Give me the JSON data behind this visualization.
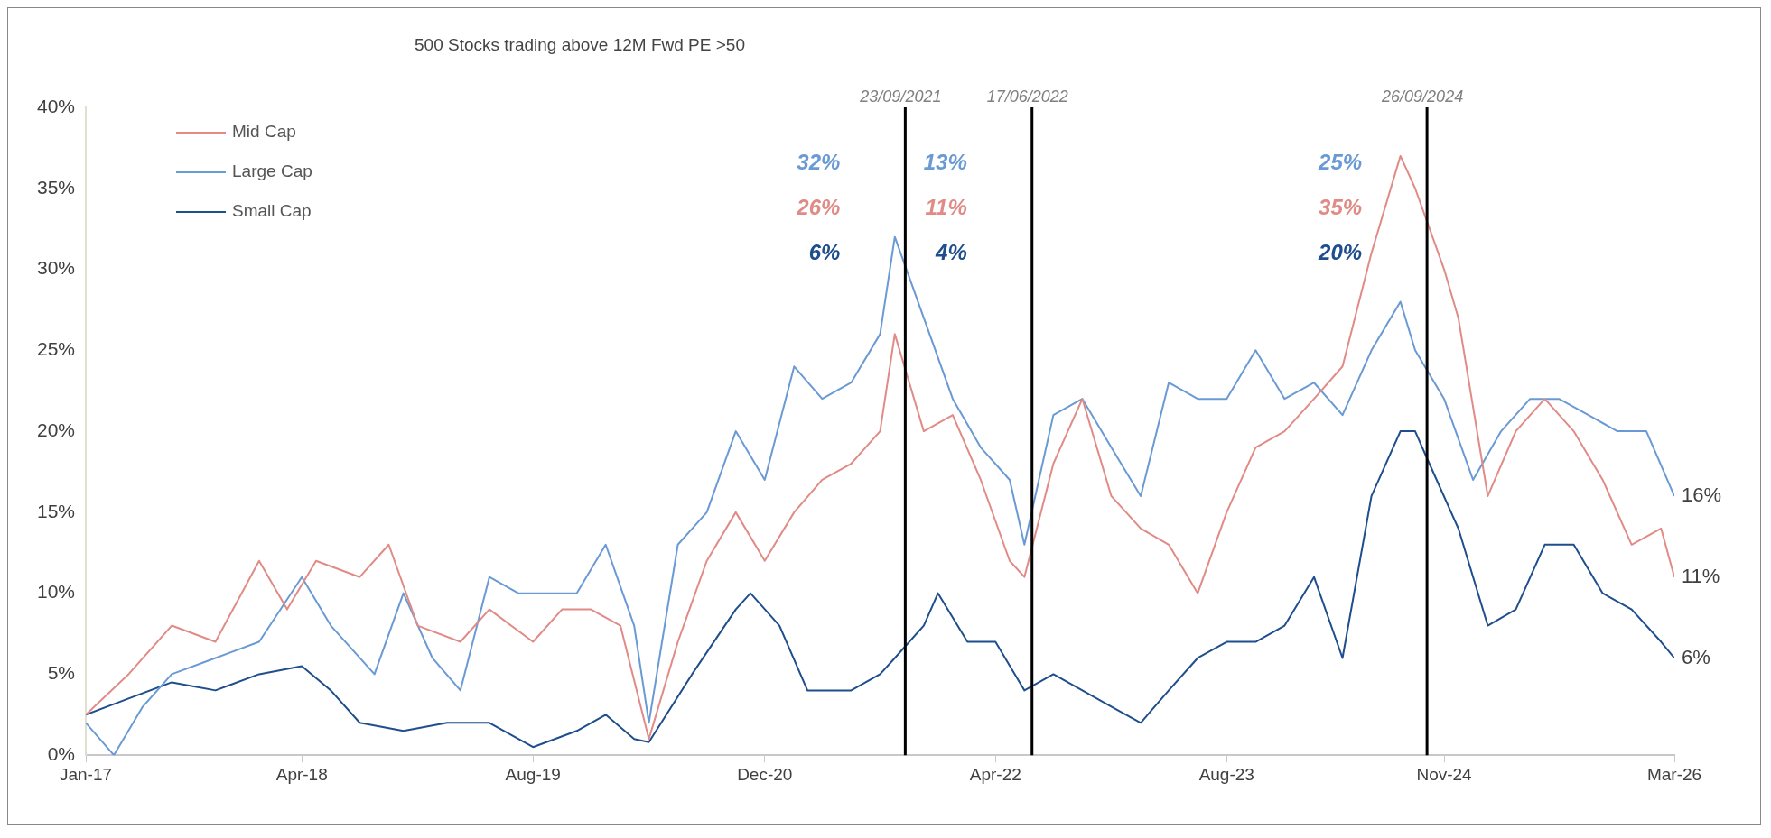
{
  "chart_data": {
    "type": "line",
    "title": "500 Stocks trading above 12M Fwd PE >50",
    "legend": "top left",
    "grid": false,
    "xlim": [
      "2017-01",
      "2026-03"
    ],
    "xticks": [
      {
        "value": "2017-01",
        "label": "Jan-17"
      },
      {
        "value": "2018-04",
        "label": "Apr-18"
      },
      {
        "value": "2019-08",
        "label": "Aug-19"
      },
      {
        "value": "2020-12",
        "label": "Dec-20"
      },
      {
        "value": "2022-04",
        "label": "Apr-22"
      },
      {
        "value": "2023-08",
        "label": "Aug-23"
      },
      {
        "value": "2024-11",
        "label": "Nov-24"
      },
      {
        "value": "2026-03",
        "label": "Mar-26"
      }
    ],
    "ylim": [
      0,
      40
    ],
    "yticks": [
      {
        "value": 0,
        "label": "0%"
      },
      {
        "value": 5,
        "label": "5%"
      },
      {
        "value": 10,
        "label": "10%"
      },
      {
        "value": 15,
        "label": "15%"
      },
      {
        "value": 20,
        "label": "20%"
      },
      {
        "value": 25,
        "label": "25%"
      },
      {
        "value": 30,
        "label": "30%"
      },
      {
        "value": 35,
        "label": "35%"
      },
      {
        "value": 40,
        "label": "40%"
      }
    ],
    "series": [
      {
        "name": "Mid Cap",
        "color": "#e08b86",
        "x": [
          "2017-01",
          "2017-04",
          "2017-07",
          "2017-10",
          "2018-01",
          "2018-03",
          "2018-05",
          "2018-08",
          "2018-10",
          "2018-12",
          "2019-03",
          "2019-05",
          "2019-08",
          "2019-10",
          "2019-12",
          "2020-02",
          "2020-04",
          "2020-06",
          "2020-08",
          "2020-10",
          "2020-12",
          "2021-02",
          "2021-04",
          "2021-06",
          "2021-08",
          "2021-09",
          "2021-11",
          "2022-01",
          "2022-03",
          "2022-05",
          "2022-06",
          "2022-08",
          "2022-10",
          "2022-12",
          "2023-02",
          "2023-04",
          "2023-06",
          "2023-08",
          "2023-10",
          "2023-12",
          "2024-02",
          "2024-04",
          "2024-06",
          "2024-08",
          "2024-09",
          "2024-11",
          "2024-12",
          "2025-02",
          "2025-04",
          "2025-06",
          "2025-08",
          "2025-10",
          "2025-12",
          "2026-02",
          "2026-03"
        ],
        "values": [
          2.5,
          5,
          8,
          7,
          12,
          9,
          12,
          11,
          13,
          8,
          7,
          9,
          7,
          9,
          9,
          8,
          1,
          7,
          12,
          15,
          12,
          15,
          17,
          18,
          20,
          26,
          20,
          21,
          17,
          12,
          11,
          18,
          22,
          16,
          14,
          13,
          10,
          15,
          19,
          20,
          22,
          24,
          31,
          37,
          35,
          30,
          27,
          16,
          20,
          22,
          20,
          17,
          13,
          14,
          11
        ]
      },
      {
        "name": "Large Cap",
        "color": "#6a9ad4",
        "x": [
          "2017-01",
          "2017-03",
          "2017-05",
          "2017-07",
          "2017-10",
          "2018-01",
          "2018-04",
          "2018-06",
          "2018-09",
          "2018-11",
          "2019-01",
          "2019-03",
          "2019-05",
          "2019-07",
          "2019-09",
          "2019-11",
          "2020-01",
          "2020-03",
          "2020-04",
          "2020-06",
          "2020-08",
          "2020-10",
          "2020-12",
          "2021-02",
          "2021-04",
          "2021-06",
          "2021-08",
          "2021-09",
          "2021-11",
          "2022-01",
          "2022-03",
          "2022-05",
          "2022-06",
          "2022-08",
          "2022-10",
          "2022-12",
          "2023-02",
          "2023-04",
          "2023-06",
          "2023-08",
          "2023-10",
          "2023-12",
          "2024-02",
          "2024-04",
          "2024-06",
          "2024-08",
          "2024-09",
          "2024-11",
          "2025-01",
          "2025-03",
          "2025-05",
          "2025-07",
          "2025-09",
          "2025-11",
          "2026-01",
          "2026-03"
        ],
        "values": [
          2,
          0,
          3,
          5,
          6,
          7,
          11,
          8,
          5,
          10,
          6,
          4,
          11,
          10,
          10,
          10,
          13,
          8,
          2,
          13,
          15,
          20,
          17,
          24,
          22,
          23,
          26,
          32,
          27,
          22,
          19,
          17,
          13,
          21,
          22,
          19,
          16,
          23,
          22,
          22,
          25,
          22,
          23,
          21,
          25,
          28,
          25,
          22,
          17,
          20,
          22,
          22,
          21,
          20,
          20,
          16
        ]
      },
      {
        "name": "Small Cap",
        "color": "#1f4e8c",
        "x": [
          "2017-01",
          "2017-04",
          "2017-07",
          "2017-10",
          "2018-01",
          "2018-04",
          "2018-06",
          "2018-08",
          "2018-11",
          "2019-02",
          "2019-05",
          "2019-08",
          "2019-11",
          "2020-01",
          "2020-03",
          "2020-04",
          "2020-07",
          "2020-10",
          "2020-11",
          "2021-01",
          "2021-03",
          "2021-06",
          "2021-08",
          "2021-09",
          "2021-11",
          "2021-12",
          "2022-02",
          "2022-04",
          "2022-06",
          "2022-08",
          "2022-10",
          "2022-12",
          "2023-02",
          "2023-04",
          "2023-06",
          "2023-08",
          "2023-10",
          "2023-12",
          "2024-02",
          "2024-04",
          "2024-06",
          "2024-08",
          "2024-09",
          "2024-10",
          "2024-12",
          "2025-02",
          "2025-04",
          "2025-06",
          "2025-08",
          "2025-10",
          "2025-12",
          "2026-02",
          "2026-03"
        ],
        "values": [
          2.5,
          3.5,
          4.5,
          4,
          5,
          5.5,
          4,
          2,
          1.5,
          2,
          2,
          0.5,
          1.5,
          2.5,
          1,
          0.8,
          5,
          9,
          10,
          8,
          4,
          4,
          5,
          6,
          8,
          10,
          7,
          7,
          4,
          5,
          4,
          3,
          2,
          4,
          6,
          7,
          7,
          8,
          11,
          6,
          16,
          20,
          20,
          18,
          14,
          8,
          9,
          13,
          13,
          10,
          9,
          7,
          6
        ]
      }
    ],
    "ref_lines": [
      {
        "axis": "x",
        "value": "2021-09-23",
        "label": "23/09/2021",
        "color": "#000000"
      },
      {
        "axis": "x",
        "value": "2022-06-17",
        "label": "17/06/2022",
        "color": "#000000"
      },
      {
        "axis": "x",
        "value": "2024-09-26",
        "label": "26/09/2024",
        "color": "#000000"
      }
    ],
    "annotations": [
      "32%",
      "26%",
      "6%",
      "13%",
      "11%",
      "4%",
      "25%",
      "35%",
      "20%",
      {
        "text": "16%",
        "x": "2026-03",
        "y": 16
      },
      {
        "text": "11%",
        "x": "2026-03",
        "y": 11
      },
      {
        "text": "6%",
        "x": "2026-03",
        "y": 6
      }
    ]
  }
}
